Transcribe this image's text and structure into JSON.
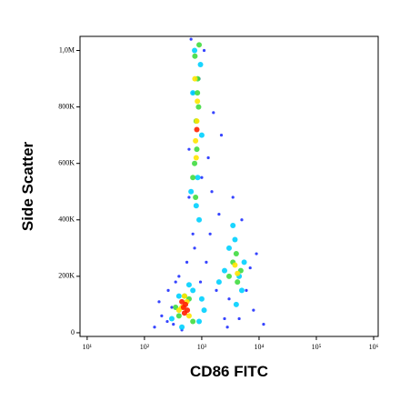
{
  "chart_data": {
    "type": "scatter",
    "x_label": "CD86 FITC",
    "y_label": "Side Scatter",
    "xscale": "log",
    "xlim": [
      7.5,
      1200000
    ],
    "ylim": [
      -13000,
      1050000
    ],
    "xticks": [
      {
        "value": 10,
        "label": "10¹"
      },
      {
        "value": 100,
        "label": "10²"
      },
      {
        "value": 1000,
        "label": "10³"
      },
      {
        "value": 10000,
        "label": "10⁴"
      },
      {
        "value": 100000,
        "label": "10⁵"
      },
      {
        "value": 1000000,
        "label": "10⁶"
      }
    ],
    "yticks": [
      0,
      {
        "value": 200000,
        "label": "200K"
      },
      {
        "value": 400000,
        "label": "400K"
      },
      {
        "value": 600000,
        "label": "600K"
      },
      {
        "value": 800000,
        "label": "800K"
      },
      {
        "value": 1000000,
        "label": "1,0M"
      }
    ],
    "series": [
      {
        "color": "#2030ff",
        "x": [
          150,
          200,
          260,
          320,
          180,
          2500,
          1800,
          3000,
          1200,
          8000,
          6000,
          12000,
          700,
          600,
          1500,
          2000,
          450,
          900,
          1100,
          5000,
          7000,
          400,
          300,
          1300,
          1600,
          2200,
          650,
          750,
          950,
          3500,
          250,
          350,
          9000,
          4500,
          1400,
          550,
          2800,
          700,
          1000,
          600
        ],
        "values": [
          20000,
          60000,
          150000,
          30000,
          110000,
          50000,
          150000,
          120000,
          250000,
          80000,
          150000,
          30000,
          350000,
          480000,
          500000,
          420000,
          10000,
          900000,
          1000000,
          400000,
          230000,
          200000,
          90000,
          620000,
          780000,
          700000,
          1040000,
          300000,
          180000,
          480000,
          40000,
          180000,
          280000,
          50000,
          350000,
          250000,
          20000,
          850000,
          550000,
          650000
        ]
      },
      {
        "color": "#00d0ff",
        "x": [
          300,
          400,
          700,
          900,
          1000,
          3000,
          3500,
          4500,
          5000,
          2500,
          800,
          850,
          700,
          750,
          950,
          1000,
          650,
          4000,
          3800,
          450,
          600,
          1100,
          2000,
          5500,
          900
        ],
        "values": [
          50000,
          130000,
          150000,
          40000,
          120000,
          300000,
          380000,
          200000,
          150000,
          220000,
          450000,
          550000,
          850000,
          1000000,
          950000,
          700000,
          500000,
          100000,
          330000,
          20000,
          170000,
          80000,
          180000,
          250000,
          400000
        ]
      },
      {
        "color": "#40dc40",
        "x": [
          750,
          800,
          850,
          900,
          780,
          820,
          880,
          700,
          760,
          840,
          400,
          500,
          600,
          700,
          350,
          3500,
          4000,
          4200,
          3000,
          4800
        ],
        "values": [
          600000,
          750000,
          900000,
          1020000,
          480000,
          650000,
          800000,
          550000,
          980000,
          850000,
          60000,
          130000,
          120000,
          40000,
          90000,
          250000,
          280000,
          180000,
          200000,
          220000
        ]
      },
      {
        "color": "#ffe400",
        "x": [
          780,
          820,
          800,
          840,
          760,
          450,
          550,
          600,
          400,
          3800,
          4200,
          500
        ],
        "values": [
          680000,
          750000,
          620000,
          820000,
          900000,
          90000,
          110000,
          60000,
          80000,
          240000,
          210000,
          130000
        ]
      },
      {
        "color": "#ff2000",
        "x": [
          480,
          520,
          560,
          500,
          450,
          820
        ],
        "values": [
          90000,
          100000,
          80000,
          70000,
          110000,
          720000
        ]
      }
    ]
  }
}
